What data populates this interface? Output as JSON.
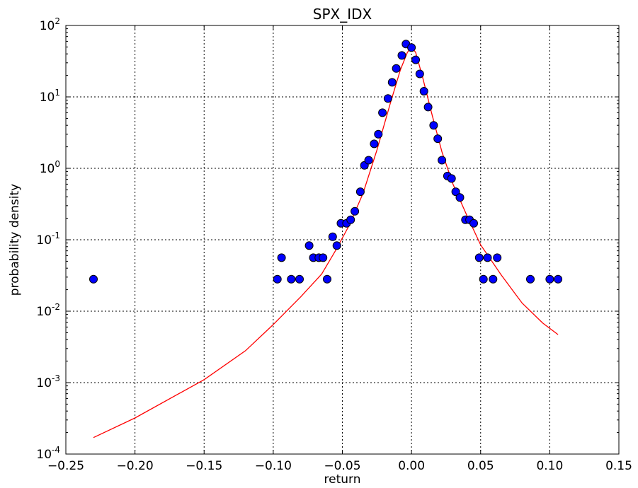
{
  "chart_data": {
    "type": "scatter",
    "title": "SPX_IDX",
    "xlabel": "return",
    "ylabel": "probability density",
    "xlim": [
      -0.25,
      0.15
    ],
    "ylim": [
      0.0001,
      100
    ],
    "yscale": "log",
    "grid": true,
    "x_ticks": [
      "−0.25",
      "−0.20",
      "−0.15",
      "−0.10",
      "−0.05",
      "0.00",
      "0.05",
      "0.10",
      "0.15"
    ],
    "x_tick_values": [
      -0.25,
      -0.2,
      -0.15,
      -0.1,
      -0.05,
      0.0,
      0.05,
      0.1,
      0.15
    ],
    "y_tick_exponents": [
      "-4",
      "-3",
      "-2",
      "-1",
      "0",
      "1",
      "2"
    ],
    "y_tick_base": "10",
    "colors": {
      "points": "#0000ff",
      "point_edge": "#000000",
      "fit": "#ff0000"
    },
    "series": [
      {
        "kind": "points",
        "points": [
          [
            -0.23,
            0.028
          ],
          [
            -0.097,
            0.028
          ],
          [
            -0.094,
            0.056
          ],
          [
            -0.087,
            0.028
          ],
          [
            -0.081,
            0.028
          ],
          [
            -0.074,
            0.083
          ],
          [
            -0.071,
            0.056
          ],
          [
            -0.067,
            0.056
          ],
          [
            -0.064,
            0.056
          ],
          [
            -0.061,
            0.028
          ],
          [
            -0.057,
            0.11
          ],
          [
            -0.054,
            0.083
          ],
          [
            -0.051,
            0.17
          ],
          [
            -0.047,
            0.17
          ],
          [
            -0.044,
            0.19
          ],
          [
            -0.041,
            0.25
          ],
          [
            -0.037,
            0.47
          ],
          [
            -0.034,
            1.1
          ],
          [
            -0.031,
            1.3
          ],
          [
            -0.027,
            2.2
          ],
          [
            -0.024,
            3.0
          ],
          [
            -0.021,
            6.0
          ],
          [
            -0.017,
            9.5
          ],
          [
            -0.014,
            16
          ],
          [
            -0.011,
            25
          ],
          [
            -0.007,
            38
          ],
          [
            -0.004,
            55
          ],
          [
            0.0,
            49
          ],
          [
            0.003,
            33
          ],
          [
            0.006,
            21
          ],
          [
            0.009,
            12
          ],
          [
            0.012,
            7.2
          ],
          [
            0.016,
            4.0
          ],
          [
            0.019,
            2.6
          ],
          [
            0.022,
            1.3
          ],
          [
            0.026,
            0.78
          ],
          [
            0.029,
            0.72
          ],
          [
            0.032,
            0.47
          ],
          [
            0.035,
            0.39
          ],
          [
            0.039,
            0.19
          ],
          [
            0.042,
            0.19
          ],
          [
            0.045,
            0.17
          ],
          [
            0.049,
            0.056
          ],
          [
            0.052,
            0.028
          ],
          [
            0.055,
            0.056
          ],
          [
            0.059,
            0.028
          ],
          [
            0.062,
            0.056
          ],
          [
            0.086,
            0.028
          ],
          [
            0.1,
            0.028
          ],
          [
            0.106,
            0.028
          ]
        ]
      },
      {
        "kind": "fit-line",
        "points": [
          [
            -0.23,
            0.00017
          ],
          [
            -0.2,
            0.00032
          ],
          [
            -0.15,
            0.0011
          ],
          [
            -0.12,
            0.0028
          ],
          [
            -0.1,
            0.0065
          ],
          [
            -0.08,
            0.016
          ],
          [
            -0.065,
            0.033
          ],
          [
            -0.055,
            0.07
          ],
          [
            -0.045,
            0.16
          ],
          [
            -0.035,
            0.45
          ],
          [
            -0.025,
            1.8
          ],
          [
            -0.015,
            8.5
          ],
          [
            -0.008,
            24
          ],
          [
            -0.003,
            42
          ],
          [
            0.0,
            50
          ],
          [
            0.003,
            42
          ],
          [
            0.008,
            19
          ],
          [
            0.015,
            5.5
          ],
          [
            0.022,
            1.7
          ],
          [
            0.03,
            0.6
          ],
          [
            0.04,
            0.22
          ],
          [
            0.05,
            0.085
          ],
          [
            0.065,
            0.032
          ],
          [
            0.08,
            0.013
          ],
          [
            0.095,
            0.0068
          ],
          [
            0.106,
            0.0047
          ]
        ]
      }
    ]
  }
}
